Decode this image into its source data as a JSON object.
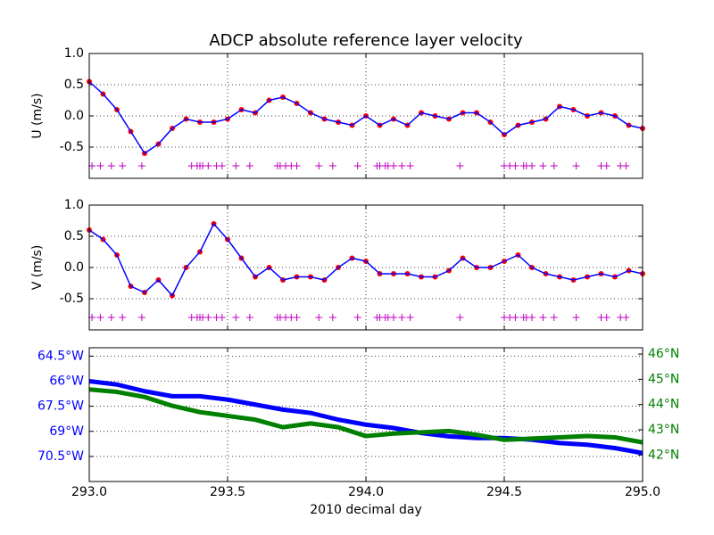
{
  "chart_data": [
    {
      "type": "scatter",
      "title": "ADCP absolute reference layer velocity",
      "ylabel": "U (m/s)",
      "x": [
        293.0,
        293.05,
        293.1,
        293.15,
        293.2,
        293.25,
        293.3,
        293.35,
        293.4,
        293.45,
        293.5,
        293.55,
        293.6,
        293.65,
        293.7,
        293.75,
        293.8,
        293.85,
        293.9,
        293.95,
        294.0,
        294.05,
        294.1,
        294.15,
        294.2,
        294.25,
        294.3,
        294.35,
        294.4,
        294.45,
        294.5,
        294.55,
        294.6,
        294.65,
        294.7,
        294.75,
        294.8,
        294.85,
        294.9,
        294.95,
        295.0
      ],
      "values": [
        0.55,
        0.35,
        0.1,
        -0.25,
        -0.6,
        -0.45,
        -0.2,
        -0.05,
        -0.1,
        -0.1,
        -0.05,
        0.1,
        0.05,
        0.25,
        0.3,
        0.2,
        0.05,
        -0.05,
        -0.1,
        -0.15,
        0.0,
        -0.15,
        -0.05,
        -0.15,
        0.05,
        0.0,
        -0.05,
        0.05,
        0.05,
        -0.1,
        -0.3,
        -0.15,
        -0.1,
        -0.05,
        0.15,
        0.1,
        0.0,
        0.05,
        0.0,
        -0.15,
        -0.2
      ],
      "marker_color": "#ff0000",
      "line_color": "#0000ff",
      "flags": [
        293.01,
        293.04,
        293.08,
        293.12,
        293.19,
        293.37,
        293.39,
        293.4,
        293.41,
        293.43,
        293.46,
        293.48,
        293.53,
        293.58,
        293.68,
        293.69,
        293.71,
        293.73,
        293.75,
        293.83,
        293.88,
        293.97,
        294.04,
        294.05,
        294.07,
        294.08,
        294.1,
        294.13,
        294.16,
        294.34,
        294.5,
        294.52,
        294.54,
        294.57,
        294.58,
        294.6,
        294.64,
        294.68,
        294.76,
        294.85,
        294.87,
        294.92,
        294.94
      ],
      "flag_level": -0.8,
      "flag_color": "#bf00bf",
      "xlim": [
        293,
        295
      ],
      "xticks": [
        293,
        293.5,
        294,
        294.5,
        295
      ],
      "ylim": [
        -1,
        1
      ],
      "yticks": [
        -0.5,
        {
          "value": 0,
          "label": "0.0"
        },
        0.5,
        {
          "value": 1,
          "label": "1.0"
        }
      ],
      "grid": true
    },
    {
      "type": "scatter",
      "ylabel": "V (m/s)",
      "x": [
        293.0,
        293.05,
        293.1,
        293.15,
        293.2,
        293.25,
        293.3,
        293.35,
        293.4,
        293.45,
        293.5,
        293.55,
        293.6,
        293.65,
        293.7,
        293.75,
        293.8,
        293.85,
        293.9,
        293.95,
        294.0,
        294.05,
        294.1,
        294.15,
        294.2,
        294.25,
        294.3,
        294.35,
        294.4,
        294.45,
        294.5,
        294.55,
        294.6,
        294.65,
        294.7,
        294.75,
        294.8,
        294.85,
        294.9,
        294.95,
        295.0
      ],
      "values": [
        0.6,
        0.45,
        0.2,
        -0.3,
        -0.4,
        -0.2,
        -0.45,
        0.0,
        0.25,
        0.7,
        0.45,
        0.15,
        -0.15,
        0.0,
        -0.2,
        -0.15,
        -0.15,
        -0.2,
        0.0,
        0.15,
        0.1,
        -0.1,
        -0.1,
        -0.1,
        -0.15,
        -0.15,
        -0.05,
        0.15,
        0.0,
        0.0,
        0.1,
        0.2,
        0.0,
        -0.1,
        -0.15,
        -0.2,
        -0.15,
        -0.1,
        -0.15,
        -0.05,
        -0.1
      ],
      "marker_color": "#ff0000",
      "line_color": "#0000ff",
      "flags": [
        293.01,
        293.04,
        293.08,
        293.12,
        293.19,
        293.37,
        293.39,
        293.4,
        293.41,
        293.43,
        293.46,
        293.48,
        293.53,
        293.58,
        293.68,
        293.69,
        293.71,
        293.73,
        293.75,
        293.83,
        293.88,
        293.97,
        294.04,
        294.05,
        294.07,
        294.08,
        294.1,
        294.13,
        294.16,
        294.34,
        294.5,
        294.52,
        294.54,
        294.57,
        294.58,
        294.6,
        294.64,
        294.68,
        294.76,
        294.85,
        294.87,
        294.92,
        294.94
      ],
      "flag_level": -0.8,
      "flag_color": "#bf00bf",
      "xlim": [
        293,
        295
      ],
      "xticks": [
        293,
        293.5,
        294,
        294.5,
        295
      ],
      "ylim": [
        -1,
        1
      ],
      "yticks": [
        -0.5,
        {
          "value": 0,
          "label": "0.0"
        },
        0.5,
        {
          "value": 1,
          "label": "1.0"
        }
      ],
      "grid": true
    },
    {
      "type": "line",
      "xlabel": "2010 decimal day",
      "x": [
        293.0,
        293.1,
        293.2,
        293.3,
        293.4,
        293.5,
        293.6,
        293.7,
        293.8,
        293.9,
        294.0,
        294.1,
        294.2,
        294.3,
        294.4,
        294.5,
        294.6,
        294.7,
        294.8,
        294.9,
        295.0
      ],
      "series": [
        {
          "color": "#0000ff",
          "axis": "y",
          "values": [
            -66.0,
            -66.2,
            -66.6,
            -66.9,
            -66.9,
            -67.1,
            -67.4,
            -67.7,
            -67.9,
            -68.3,
            -68.6,
            -68.8,
            -69.1,
            -69.3,
            -69.4,
            -69.4,
            -69.5,
            -69.7,
            -69.8,
            -70.0,
            -70.3
          ]
        },
        {
          "color": "#008000",
          "axis": "y2",
          "values": [
            44.6,
            44.5,
            44.3,
            43.95,
            43.7,
            43.55,
            43.4,
            43.1,
            43.25,
            43.1,
            42.75,
            42.85,
            42.9,
            42.95,
            42.8,
            42.6,
            42.65,
            42.7,
            42.75,
            42.7,
            42.5
          ]
        }
      ],
      "xlim": [
        293,
        295
      ],
      "xticks": [
        {
          "value": 293,
          "label": "293.0"
        },
        293.5,
        {
          "value": 294,
          "label": "294.0"
        },
        294.5,
        {
          "value": 295,
          "label": "295.0"
        }
      ],
      "ylim": [
        -72,
        -64
      ],
      "yticks": [
        {
          "value": -70.5,
          "label": "70.5°W"
        },
        {
          "value": -69,
          "label": "69°W"
        },
        {
          "value": -67.5,
          "label": "67.5°W"
        },
        {
          "value": -66,
          "label": "66°W"
        },
        {
          "value": -64.5,
          "label": "64.5°W"
        }
      ],
      "y2lim": [
        40.95,
        46.25
      ],
      "y2ticks": [
        {
          "value": 42,
          "label": "42°N"
        },
        {
          "value": 43,
          "label": "43°N"
        },
        {
          "value": 44,
          "label": "44°N"
        },
        {
          "value": 45,
          "label": "45°N"
        },
        {
          "value": 46,
          "label": "46°N"
        }
      ],
      "grid": true
    }
  ]
}
